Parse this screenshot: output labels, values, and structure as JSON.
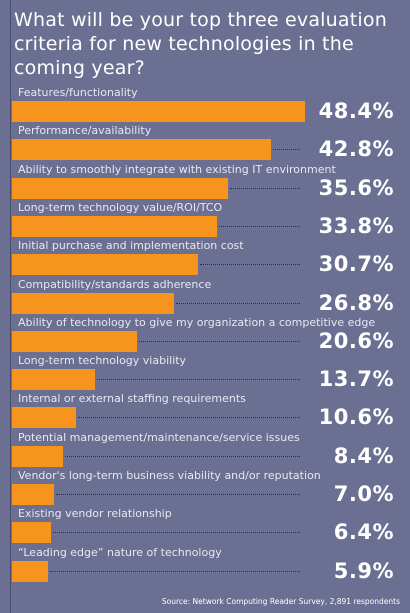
{
  "chart_data": {
    "type": "bar",
    "orientation": "horizontal",
    "title": "What will be your top three evaluation criteria for new technologies in the coming year?",
    "categories": [
      "Features/functionality",
      "Performance/availability",
      "Ability to smoothly integrate with existing IT environment",
      "Long-term technology value/ROI/TCO",
      "Initial purchase and implementation cost",
      "Compatibility/standards adherence",
      "Ability of technology to give my organization a competitive edge",
      "Long-term technology viability",
      "Internal or external staffing requirements",
      "Potential management/maintenance/service issues",
      "Vendor's long-term business viability and/or reputation",
      "Existing vendor relationship",
      "“Leading edge” nature of technology"
    ],
    "values": [
      48.4,
      42.8,
      35.6,
      33.8,
      30.7,
      26.8,
      20.6,
      13.7,
      10.6,
      8.4,
      7.0,
      6.4,
      5.9
    ],
    "value_labels": [
      "48.4%",
      "42.8%",
      "35.6%",
      "33.8%",
      "30.7%",
      "26.8%",
      "20.6%",
      "13.7%",
      "10.6%",
      "8.4%",
      "7.0%",
      "6.4%",
      "5.9%"
    ],
    "source": "Source: Network Computing Reader Survey, 2,891 respondents",
    "colors": {
      "bar": "#f7941d",
      "background": "#6b6f91",
      "text": "#ffffff"
    },
    "grid": false
  }
}
